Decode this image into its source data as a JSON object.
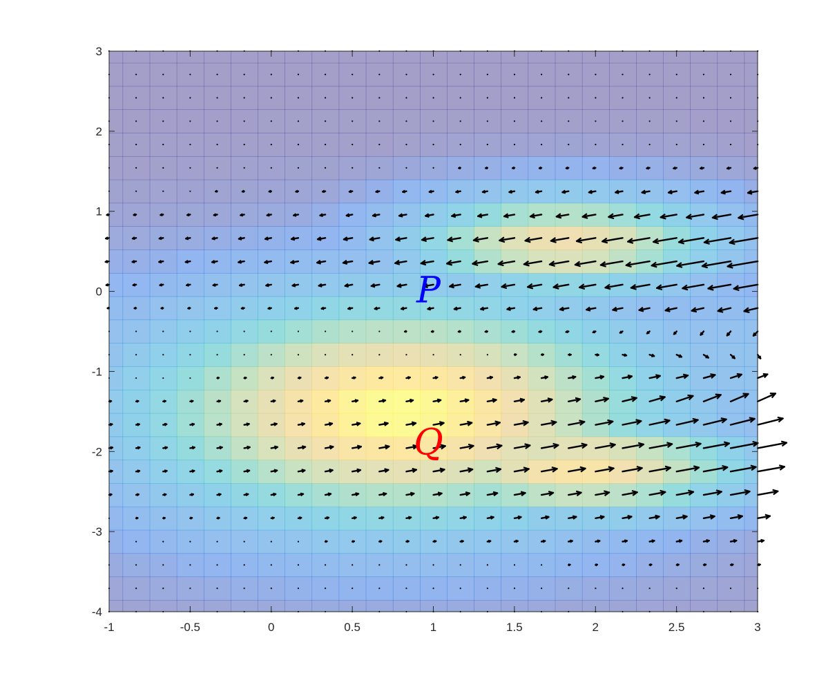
{
  "chart_data": {
    "type": "heatmap",
    "subtype": "vector-field-over-colored-grid",
    "title": "",
    "xlabel": "",
    "ylabel": "",
    "xlim": [
      -1,
      3
    ],
    "ylim": [
      -4,
      3
    ],
    "x_ticks": [
      -1,
      -0.5,
      0,
      0.5,
      1,
      1.5,
      2,
      2.5,
      3
    ],
    "x_tick_labels": [
      "-1",
      "-0.5",
      "0",
      "0.5",
      "1",
      "1.5",
      "2",
      "2.5",
      "3"
    ],
    "y_ticks": [
      -4,
      -3,
      -2,
      -1,
      0,
      1,
      2,
      3
    ],
    "y_tick_labels": [
      "-4",
      "-3",
      "-2",
      "-1",
      "0",
      "1",
      "2",
      "3"
    ],
    "grid": false,
    "legend": "none",
    "field_grid": {
      "x_start": -1,
      "x_step": 0.1667,
      "nx": 25,
      "y_start": -4,
      "y_step": 0.2917,
      "ny": 25
    },
    "field_description": "Arrows point left in the upper band around y = 0 to 1 and point right in the lower band around y = -1.5 to -2.5; both grow with x. Arrows converge toward x = 3, y = -1.",
    "arrow_color": "#000000",
    "colormap": "parula, semi-transparent",
    "annotations": [
      {
        "text": "P",
        "x": 0.97,
        "y": 0.02,
        "color": "#0000ff"
      },
      {
        "text": "Q",
        "x": 0.97,
        "y": -1.88,
        "color": "#ff0000"
      }
    ]
  }
}
